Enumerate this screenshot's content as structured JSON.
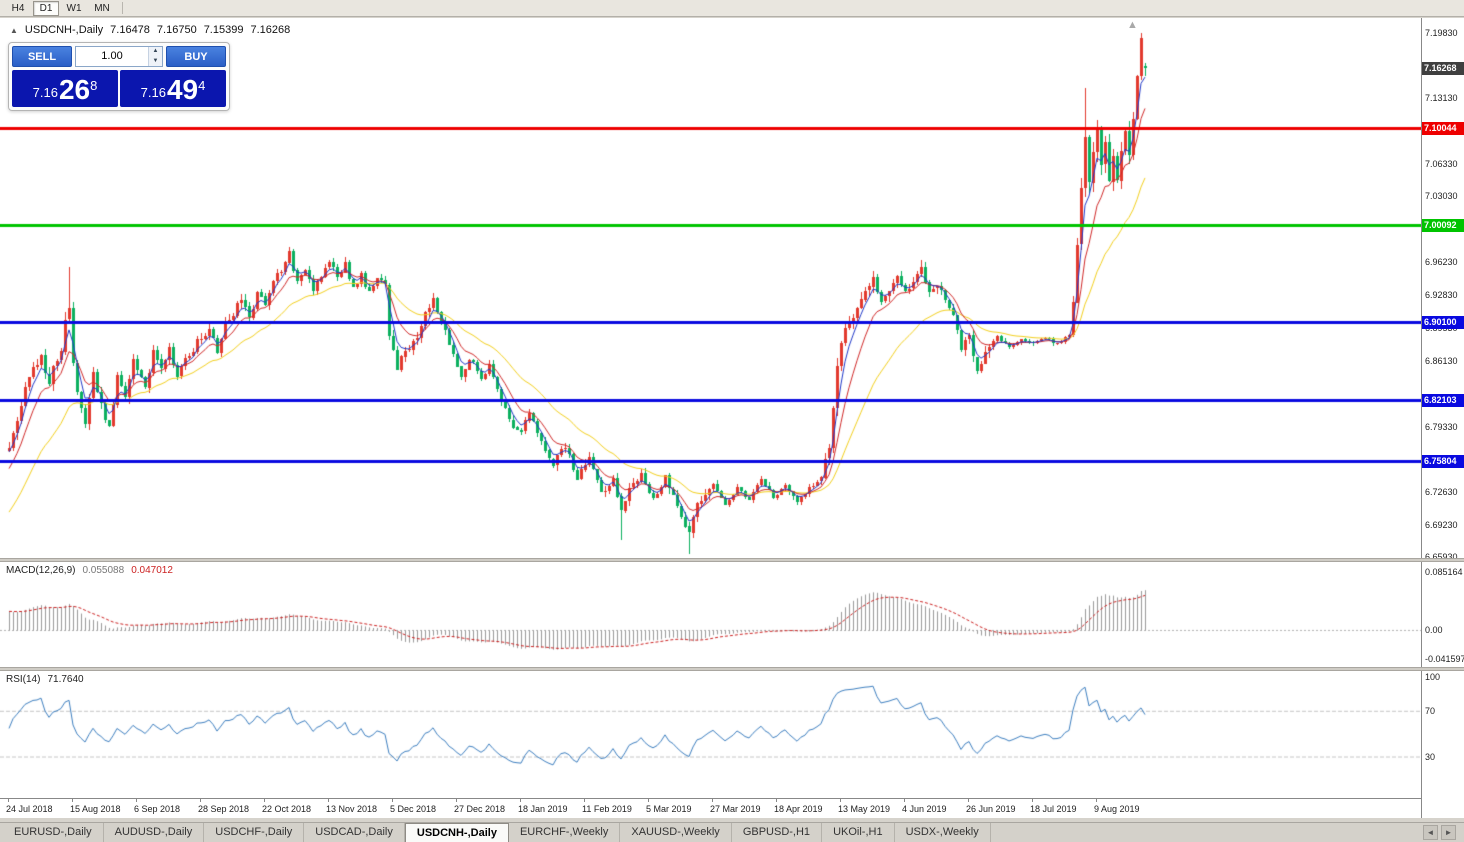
{
  "toolbar": {
    "timeframes": [
      "H4",
      "D1",
      "W1",
      "MN"
    ],
    "active": "D1"
  },
  "icons": {
    "collapse": "▲",
    "marker_up": "▲",
    "volume_up": "▲",
    "volume_down": "▼",
    "tab_left": "◄",
    "tab_right": "►"
  },
  "chart_header": {
    "symbol": "USDCNH-,Daily",
    "open": "7.16478",
    "high": "7.16750",
    "low": "7.15399",
    "close": "7.16268"
  },
  "trade_panel": {
    "sell_label": "SELL",
    "buy_label": "BUY",
    "volume": "1.00",
    "sell_price": {
      "prefix": "7.16",
      "big": "26",
      "sup": "8"
    },
    "buy_price": {
      "prefix": "7.16",
      "big": "49",
      "sup": "4"
    }
  },
  "price_scale": {
    "labels": [
      {
        "text": "7.19830",
        "value": 7.1983
      },
      {
        "text": "7.13130",
        "value": 7.1313
      },
      {
        "text": "7.06330",
        "value": 7.0633
      },
      {
        "text": "7.03030",
        "value": 7.0303
      },
      {
        "text": "6.96230",
        "value": 6.9623
      },
      {
        "text": "6.92830",
        "value": 6.9283
      },
      {
        "text": "6.89530",
        "value": 6.8953
      },
      {
        "text": "6.86130",
        "value": 6.8613
      },
      {
        "text": "6.79330",
        "value": 6.7933
      },
      {
        "text": "6.72630",
        "value": 6.7263
      },
      {
        "text": "6.69230",
        "value": 6.6923
      },
      {
        "text": "6.65930",
        "value": 6.6593
      }
    ],
    "badges": [
      {
        "text": "7.16268",
        "value": 7.16268,
        "color": "#3f3f3f",
        "name": "current-price-badge"
      },
      {
        "text": "7.10044",
        "value": 7.10044,
        "color": "#ee0000",
        "name": "resistance-level-badge"
      },
      {
        "text": "7.00092",
        "value": 7.00092,
        "color": "#00c400",
        "name": "support-level-badge"
      },
      {
        "text": "6.90100",
        "value": 6.901,
        "color": "#0909e0",
        "name": "level-badge"
      },
      {
        "text": "6.82103",
        "value": 6.82103,
        "color": "#0909e0",
        "name": "level-badge"
      },
      {
        "text": "6.75804",
        "value": 6.75804,
        "color": "#0909e0",
        "name": "level-badge"
      }
    ]
  },
  "indicators": {
    "macd": {
      "label": "MACD(12,26,9)",
      "main_value": "0.055088",
      "signal_value": "0.047012",
      "scale": [
        {
          "text": "0.085164",
          "value": 0.085164
        },
        {
          "text": "0.00",
          "value": 0
        },
        {
          "text": "-0.041597",
          "value": -0.041597
        }
      ]
    },
    "rsi": {
      "label": "RSI(14)",
      "value": "71.7640",
      "scale": [
        {
          "text": "100",
          "value": 100
        },
        {
          "text": "70",
          "value": 70
        },
        {
          "text": "30",
          "value": 30
        }
      ],
      "dashed_levels": [
        70,
        30
      ]
    }
  },
  "x_axis": {
    "labels": [
      "24 Jul 2018",
      "15 Aug 2018",
      "6 Sep 2018",
      "28 Sep 2018",
      "22 Oct 2018",
      "13 Nov 2018",
      "5 Dec 2018",
      "27 Dec 2018",
      "18 Jan 2019",
      "11 Feb 2019",
      "5 Mar 2019",
      "27 Mar 2019",
      "18 Apr 2019",
      "13 May 2019",
      "4 Jun 2019",
      "26 Jun 2019",
      "18 Jul 2019",
      "9 Aug 2019"
    ]
  },
  "tabs": {
    "items": [
      {
        "label": "EURUSD-,Daily",
        "active": false
      },
      {
        "label": "AUDUSD-,Daily",
        "active": false
      },
      {
        "label": "USDCHF-,Daily",
        "active": false
      },
      {
        "label": "USDCAD-,Daily",
        "active": false
      },
      {
        "label": "USDCNH-,Daily",
        "active": true
      },
      {
        "label": "EURCHF-,Weekly",
        "active": false
      },
      {
        "label": "XAUUSD-,Weekly",
        "active": false
      },
      {
        "label": "GBPUSD-,H1",
        "active": false
      },
      {
        "label": "UKOil-,H1",
        "active": false
      },
      {
        "label": "USDX-,Weekly",
        "active": false
      }
    ]
  },
  "chart_data": {
    "type": "candlestick",
    "symbol": "USDCNH",
    "timeframe": "Daily",
    "title": "USDCNH-,Daily",
    "ohlc_current": {
      "open": 7.16478,
      "high": 7.1675,
      "low": 7.15399,
      "close": 7.16268
    },
    "y_axis": {
      "top": 7.1983,
      "bottom": 6.6593
    },
    "colors": {
      "up": "#e23a2e",
      "down": "#0cb05f",
      "ma_fast": "#2038c8",
      "ma_mid": "#d02828",
      "ma_slow": "#f2cf1d",
      "macd_hist": "#9a9a9a",
      "macd_signal": "#cc2222",
      "rsi": "#3c7ebf"
    },
    "levels": [
      {
        "price": 7.10044,
        "color": "#ee0000"
      },
      {
        "price": 7.00092,
        "color": "#00c400"
      },
      {
        "price": 6.901,
        "color": "#0909e0"
      },
      {
        "price": 6.82103,
        "color": "#0909e0"
      },
      {
        "price": 6.75804,
        "color": "#0909e0"
      }
    ],
    "candle_count": 285,
    "price_path": [
      [
        0,
        6.772
      ],
      [
        2,
        6.8
      ],
      [
        5,
        6.845
      ],
      [
        8,
        6.865
      ],
      [
        10,
        6.84
      ],
      [
        13,
        6.875
      ],
      [
        14,
        6.9
      ],
      [
        15,
        6.915
      ],
      [
        16,
        6.855
      ],
      [
        17,
        6.825
      ],
      [
        19,
        6.8
      ],
      [
        21,
        6.85
      ],
      [
        23,
        6.815
      ],
      [
        25,
        6.79
      ],
      [
        27,
        6.845
      ],
      [
        29,
        6.82
      ],
      [
        31,
        6.86
      ],
      [
        34,
        6.835
      ],
      [
        36,
        6.87
      ],
      [
        38,
        6.85
      ],
      [
        40,
        6.875
      ],
      [
        42,
        6.845
      ],
      [
        44,
        6.86
      ],
      [
        47,
        6.88
      ],
      [
        50,
        6.895
      ],
      [
        52,
        6.87
      ],
      [
        54,
        6.9
      ],
      [
        56,
        6.91
      ],
      [
        58,
        6.925
      ],
      [
        60,
        6.905
      ],
      [
        62,
        6.93
      ],
      [
        64,
        6.92
      ],
      [
        66,
        6.945
      ],
      [
        68,
        6.955
      ],
      [
        70,
        6.975
      ],
      [
        72,
        6.94
      ],
      [
        74,
        6.955
      ],
      [
        76,
        6.93
      ],
      [
        78,
        6.95
      ],
      [
        80,
        6.965
      ],
      [
        82,
        6.945
      ],
      [
        84,
        6.96
      ],
      [
        86,
        6.935
      ],
      [
        88,
        6.95
      ],
      [
        90,
        6.93
      ],
      [
        92,
        6.945
      ],
      [
        94,
        6.94
      ],
      [
        95,
        6.89
      ],
      [
        97,
        6.855
      ],
      [
        99,
        6.87
      ],
      [
        102,
        6.885
      ],
      [
        104,
        6.91
      ],
      [
        106,
        6.925
      ],
      [
        108,
        6.9
      ],
      [
        111,
        6.87
      ],
      [
        113,
        6.845
      ],
      [
        115,
        6.865
      ],
      [
        118,
        6.84
      ],
      [
        120,
        6.855
      ],
      [
        123,
        6.82
      ],
      [
        125,
        6.8
      ],
      [
        128,
        6.785
      ],
      [
        130,
        6.81
      ],
      [
        133,
        6.78
      ],
      [
        136,
        6.755
      ],
      [
        139,
        6.775
      ],
      [
        142,
        6.74
      ],
      [
        145,
        6.76
      ],
      [
        148,
        6.725
      ],
      [
        151,
        6.74
      ],
      [
        153,
        6.705
      ],
      [
        155,
        6.73
      ],
      [
        158,
        6.745
      ],
      [
        161,
        6.72
      ],
      [
        164,
        6.74
      ],
      [
        167,
        6.71
      ],
      [
        170,
        6.685
      ],
      [
        172,
        6.715
      ],
      [
        176,
        6.735
      ],
      [
        179,
        6.715
      ],
      [
        182,
        6.73
      ],
      [
        185,
        6.72
      ],
      [
        188,
        6.74
      ],
      [
        191,
        6.72
      ],
      [
        194,
        6.735
      ],
      [
        197,
        6.715
      ],
      [
        200,
        6.73
      ],
      [
        203,
        6.74
      ],
      [
        205,
        6.775
      ],
      [
        206,
        6.81
      ],
      [
        207,
        6.855
      ],
      [
        208,
        6.88
      ],
      [
        210,
        6.9
      ],
      [
        212,
        6.915
      ],
      [
        214,
        6.93
      ],
      [
        216,
        6.945
      ],
      [
        218,
        6.92
      ],
      [
        220,
        6.935
      ],
      [
        222,
        6.95
      ],
      [
        224,
        6.93
      ],
      [
        226,
        6.94
      ],
      [
        228,
        6.955
      ],
      [
        230,
        6.93
      ],
      [
        232,
        6.94
      ],
      [
        234,
        6.925
      ],
      [
        236,
        6.91
      ],
      [
        238,
        6.875
      ],
      [
        240,
        6.885
      ],
      [
        242,
        6.85
      ],
      [
        244,
        6.87
      ],
      [
        247,
        6.885
      ],
      [
        250,
        6.875
      ],
      [
        253,
        6.885
      ],
      [
        256,
        6.878
      ],
      [
        259,
        6.885
      ],
      [
        262,
        6.878
      ],
      [
        265,
        6.888
      ],
      [
        266,
        6.92
      ],
      [
        267,
        6.985
      ],
      [
        268,
        7.045
      ],
      [
        269,
        7.095
      ],
      [
        270,
        7.05
      ],
      [
        271,
        7.075
      ],
      [
        272,
        7.1
      ],
      [
        273,
        7.065
      ],
      [
        274,
        7.09
      ],
      [
        275,
        7.05
      ],
      [
        276,
        7.07
      ],
      [
        277,
        7.045
      ],
      [
        278,
        7.075
      ],
      [
        279,
        7.095
      ],
      [
        280,
        7.07
      ],
      [
        281,
        7.11
      ],
      [
        282,
        7.155
      ],
      [
        283,
        7.188
      ],
      [
        284,
        7.16268
      ]
    ],
    "volatility_zones": [
      [
        0,
        20,
        0.01
      ],
      [
        20,
        60,
        0.0085
      ],
      [
        60,
        94,
        0.007
      ],
      [
        94,
        110,
        0.0085
      ],
      [
        110,
        145,
        0.0075
      ],
      [
        145,
        176,
        0.0075
      ],
      [
        176,
        204,
        0.0055
      ],
      [
        204,
        217,
        0.011
      ],
      [
        217,
        237,
        0.007
      ],
      [
        237,
        246,
        0.0085
      ],
      [
        246,
        266,
        0.0038
      ],
      [
        266,
        285,
        0.015
      ]
    ],
    "wick_events": [
      {
        "i": 15,
        "high": 6.958
      },
      {
        "i": 153,
        "low": 6.677
      },
      {
        "i": 170,
        "low": 6.662
      },
      {
        "i": 228,
        "high": 6.965
      },
      {
        "i": 269,
        "high": 7.142
      },
      {
        "i": 283,
        "high": 7.1983
      },
      {
        "i": 284,
        "open": 7.16478,
        "high": 7.1675,
        "low": 7.15399,
        "close": 7.16268
      }
    ]
  }
}
